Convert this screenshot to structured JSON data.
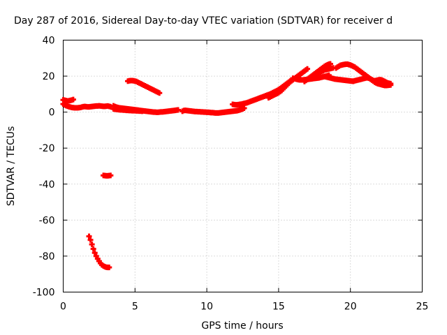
{
  "chart_data": {
    "type": "scatter",
    "title": "Day 287 of 2016, Sidereal Day-to-day VTEC variation (SDTVAR) for receiver d",
    "xlabel": "GPS time / hours",
    "ylabel": "SDTVAR / TECUs",
    "xlim": [
      0,
      25
    ],
    "ylim": [
      -100,
      40
    ],
    "xticks": [
      0,
      5,
      10,
      15,
      20,
      25
    ],
    "yticks": [
      -100,
      -80,
      -60,
      -40,
      -20,
      0,
      20,
      40
    ],
    "xtick_labels": [
      "0",
      "5",
      "10",
      "15",
      "20",
      "25"
    ],
    "ytick_labels": [
      "-100",
      "-80",
      "-60",
      "-40",
      "-20",
      "0",
      "20",
      "40"
    ],
    "grid": true,
    "color": "#ff0000",
    "series": [
      {
        "values_x": [
          0.0,
          0.1,
          0.2,
          0.3,
          0.4,
          0.5,
          0.6,
          0.7,
          0.8,
          0.9,
          1.0,
          1.1,
          1.2,
          1.3,
          1.4,
          1.5,
          1.6,
          1.7,
          1.8,
          1.9,
          2.0,
          2.1,
          2.2,
          2.3,
          2.4,
          2.5,
          2.6,
          2.7,
          2.8,
          2.9,
          3.0,
          3.1,
          3.2,
          3.3
        ],
        "values_y": [
          4.5,
          4.0,
          3.6,
          3.3,
          3.0,
          2.8,
          2.6,
          2.5,
          2.4,
          2.4,
          2.4,
          2.5,
          2.6,
          2.8,
          3.0,
          3.1,
          3.0,
          2.9,
          2.9,
          3.0,
          3.1,
          3.2,
          3.3,
          3.4,
          3.4,
          3.5,
          3.4,
          3.3,
          3.2,
          3.2,
          3.3,
          3.4,
          3.2,
          3.0
        ]
      },
      {
        "values_x": [
          0.0,
          0.1,
          0.2,
          0.3,
          0.4,
          0.5,
          0.6,
          0.7
        ],
        "values_y": [
          6.8,
          6.6,
          6.4,
          6.2,
          6.3,
          6.5,
          6.7,
          7.0
        ]
      },
      {
        "values_x": [
          3.5,
          3.6,
          3.7,
          3.8,
          3.9,
          4.0,
          4.1,
          4.2,
          4.3,
          4.4,
          4.5,
          4.6,
          4.7,
          4.8,
          4.9,
          5.0,
          5.1,
          5.2,
          5.3,
          5.4,
          5.5,
          5.6,
          5.7,
          5.8,
          5.9,
          6.0,
          6.1,
          6.2,
          6.3,
          6.4,
          6.5,
          6.6,
          6.7,
          6.8,
          6.9,
          7.0,
          7.1,
          7.2,
          7.3,
          7.4,
          7.5,
          7.6,
          7.7,
          7.8,
          7.9,
          8.0
        ],
        "values_y": [
          3.5,
          3.1,
          2.8,
          2.6,
          2.4,
          2.3,
          2.2,
          2.1,
          2.0,
          1.9,
          1.8,
          1.7,
          1.6,
          1.5,
          1.4,
          1.3,
          1.2,
          1.1,
          1.0,
          0.9,
          0.8,
          0.7,
          0.6,
          0.5,
          0.4,
          0.3,
          0.2,
          0.1,
          0.0,
          0.0,
          -0.1,
          -0.1,
          0.0,
          0.1,
          0.1,
          0.2,
          0.3,
          0.4,
          0.5,
          0.6,
          0.7,
          0.8,
          0.9,
          1.0,
          1.1,
          1.2
        ]
      },
      {
        "values_x": [
          3.5,
          3.6,
          3.7,
          3.8,
          3.9,
          4.0,
          4.1,
          4.2,
          4.3,
          4.4,
          4.5,
          4.6,
          4.7,
          4.8,
          4.9,
          5.0,
          5.1,
          5.2,
          5.3,
          5.4,
          5.5
        ],
        "values_y": [
          1.8,
          1.6,
          1.5,
          1.4,
          1.3,
          1.2,
          1.2,
          1.1,
          1.1,
          1.0,
          1.0,
          0.9,
          0.9,
          0.8,
          0.8,
          0.8,
          0.7,
          0.7,
          0.6,
          0.6,
          0.5
        ]
      },
      {
        "values_x": [
          4.5,
          4.6,
          4.7,
          4.8,
          4.9,
          5.0,
          5.1,
          5.2,
          5.3,
          5.4,
          5.5,
          5.6,
          5.7,
          5.8,
          5.9,
          6.0,
          6.1,
          6.2,
          6.3,
          6.4,
          6.5,
          6.6,
          6.7
        ],
        "values_y": [
          17.2,
          17.4,
          17.5,
          17.5,
          17.4,
          17.2,
          17.0,
          16.6,
          16.2,
          15.8,
          15.4,
          15.0,
          14.6,
          14.2,
          13.8,
          13.4,
          13.0,
          12.6,
          12.2,
          11.8,
          11.4,
          11.0,
          10.6
        ]
      },
      {
        "values_x": [
          8.3,
          8.4,
          8.5,
          8.6,
          8.7,
          8.8,
          8.9,
          9.0,
          9.1,
          9.2,
          9.3,
          9.4,
          9.5,
          9.6,
          9.7,
          9.8,
          9.9,
          10.0,
          10.1,
          10.2,
          10.3,
          10.4,
          10.5,
          10.6,
          10.7,
          10.8,
          10.9,
          11.0,
          11.1,
          11.2,
          11.3,
          11.4,
          11.5,
          11.6,
          11.7,
          11.8,
          11.9,
          12.0,
          12.1,
          12.2,
          12.3,
          12.4,
          12.5,
          12.6
        ],
        "values_y": [
          0.5,
          0.9,
          1.0,
          0.9,
          0.8,
          0.7,
          0.6,
          0.5,
          0.4,
          0.3,
          0.3,
          0.2,
          0.2,
          0.1,
          0.1,
          0.0,
          0.0,
          -0.1,
          -0.1,
          -0.2,
          -0.3,
          -0.3,
          -0.4,
          -0.5,
          -0.5,
          -0.5,
          -0.4,
          -0.3,
          -0.2,
          -0.1,
          0.0,
          0.1,
          0.2,
          0.3,
          0.4,
          0.5,
          0.6,
          0.7,
          0.8,
          1.0,
          1.2,
          1.5,
          1.8,
          2.2
        ]
      },
      {
        "values_x": [
          11.8,
          11.9,
          12.0,
          12.1,
          12.2,
          12.3,
          12.4,
          12.5,
          12.6,
          12.7,
          12.8,
          12.9,
          13.0,
          13.1,
          13.2,
          13.3,
          13.4,
          13.5,
          13.6,
          13.7,
          13.8,
          13.9,
          14.0,
          14.1,
          14.2,
          14.3,
          14.4,
          14.5,
          14.6,
          14.7,
          14.8,
          14.9,
          15.0,
          15.1,
          15.2,
          15.3,
          15.4,
          15.5,
          15.6,
          15.7,
          15.8,
          15.9,
          16.0
        ],
        "values_y": [
          4.3,
          4.2,
          4.1,
          4.1,
          4.2,
          4.3,
          4.4,
          4.6,
          4.8,
          5.0,
          5.2,
          5.5,
          5.8,
          6.1,
          6.4,
          6.7,
          7.0,
          7.3,
          7.6,
          7.9,
          8.2,
          8.5,
          8.8,
          9.1,
          9.4,
          9.7,
          10.0,
          10.4,
          10.8,
          11.2,
          11.6,
          12.0,
          12.5,
          13.0,
          13.6,
          14.2,
          14.8,
          15.4,
          16.0,
          16.6,
          17.2,
          17.8,
          18.4
        ]
      },
      {
        "values_x": [
          14.3,
          14.4,
          14.5,
          14.6,
          14.7,
          14.8,
          14.9,
          15.0,
          15.1,
          15.2,
          15.3,
          15.4,
          15.5,
          15.6,
          15.7,
          15.8,
          15.9,
          16.0,
          16.1,
          16.2,
          16.3,
          16.4,
          16.5,
          16.6,
          16.7,
          16.8,
          16.9,
          17.0
        ],
        "values_y": [
          8.0,
          8.4,
          8.8,
          9.2,
          9.6,
          10.0,
          10.4,
          10.8,
          11.4,
          12.0,
          12.8,
          13.6,
          14.4,
          15.2,
          16.0,
          16.8,
          17.4,
          18.0,
          18.6,
          19.2,
          19.8,
          20.4,
          21.0,
          21.6,
          22.2,
          22.8,
          23.4,
          24.0
        ]
      },
      {
        "values_x": [
          16.0,
          16.1,
          16.2,
          16.3,
          16.4,
          16.5,
          16.6,
          16.7,
          16.8,
          16.9,
          17.0,
          17.1,
          17.2,
          17.3,
          17.4,
          17.5,
          17.6,
          17.7,
          17.8,
          17.9,
          18.0,
          18.1,
          18.2,
          18.3,
          18.4,
          18.5
        ],
        "values_y": [
          18.8,
          18.6,
          18.4,
          18.2,
          18.0,
          17.9,
          17.9,
          17.9,
          18.0,
          18.1,
          18.2,
          18.3,
          18.4,
          18.5,
          18.6,
          18.7,
          18.8,
          18.9,
          19.0,
          19.2,
          19.4,
          19.6,
          19.8,
          20.0,
          20.2,
          20.5
        ]
      },
      {
        "values_x": [
          16.8,
          16.9,
          17.0,
          17.1,
          17.2,
          17.3,
          17.4,
          17.5,
          17.6,
          17.7,
          17.8,
          17.9,
          18.0,
          18.1,
          18.2,
          18.3,
          18.4,
          18.5,
          18.6
        ],
        "values_y": [
          17.0,
          17.6,
          18.2,
          18.8,
          19.4,
          20.0,
          20.6,
          21.2,
          21.8,
          22.4,
          23.0,
          23.6,
          24.2,
          24.8,
          25.4,
          25.9,
          26.3,
          26.6,
          26.8
        ]
      },
      {
        "values_x": [
          17.6,
          17.7,
          17.8,
          17.9,
          18.0,
          18.1,
          18.2,
          18.3,
          18.4,
          18.5,
          18.6,
          18.7,
          18.8
        ],
        "values_y": [
          21.0,
          21.4,
          21.8,
          22.2,
          22.6,
          23.0,
          23.4,
          23.6,
          23.8,
          24.0,
          24.2,
          24.4,
          24.6
        ]
      },
      {
        "values_x": [
          18.2,
          18.3,
          18.4,
          18.5,
          18.6,
          18.7,
          18.8,
          18.9,
          19.0,
          19.1,
          19.2,
          19.3,
          19.4,
          19.5,
          19.6,
          19.7,
          19.8,
          19.9,
          20.0,
          20.1,
          20.2
        ],
        "values_y": [
          19.8,
          19.6,
          19.4,
          19.2,
          19.0,
          18.8,
          18.6,
          18.4,
          18.3,
          18.2,
          18.1,
          18.0,
          17.9,
          17.8,
          17.7,
          17.6,
          17.5,
          17.4,
          17.3,
          17.2,
          17.1
        ]
      },
      {
        "values_x": [
          19.0,
          19.1,
          19.2,
          19.3,
          19.4,
          19.5,
          19.6,
          19.7,
          19.8,
          19.9,
          20.0,
          20.1,
          20.2,
          20.3,
          20.4,
          20.5,
          20.6,
          20.7,
          20.8,
          20.9,
          21.0,
          21.1,
          21.2,
          21.3,
          21.4,
          21.5,
          21.6,
          21.7,
          21.8,
          21.9,
          22.0,
          22.1,
          22.2,
          22.3,
          22.4,
          22.5,
          22.6,
          22.7,
          22.8
        ],
        "values_y": [
          24.5,
          25.0,
          25.5,
          26.0,
          26.2,
          26.4,
          26.5,
          26.6,
          26.6,
          26.4,
          26.2,
          25.8,
          25.4,
          25.0,
          24.4,
          23.8,
          23.2,
          22.6,
          22.0,
          21.4,
          20.8,
          20.2,
          19.6,
          19.0,
          18.4,
          17.8,
          17.2,
          16.6,
          16.2,
          15.8,
          15.6,
          15.4,
          15.2,
          15.0,
          14.8,
          14.8,
          14.9,
          15.0,
          15.1
        ]
      },
      {
        "values_x": [
          20.2,
          20.3,
          20.4,
          20.5,
          20.6,
          20.7,
          20.8,
          20.9,
          21.0,
          21.1,
          21.2,
          21.3,
          21.4,
          21.5,
          21.6,
          21.7,
          21.8,
          21.9,
          22.0,
          22.1,
          22.2,
          22.3,
          22.4,
          22.5,
          22.6,
          22.7,
          22.8
        ],
        "values_y": [
          17.2,
          17.4,
          17.6,
          17.8,
          18.0,
          18.2,
          18.4,
          18.6,
          18.8,
          19.0,
          19.0,
          18.8,
          18.4,
          18.0,
          17.6,
          17.4,
          17.6,
          17.8,
          18.0,
          18.0,
          17.8,
          17.4,
          17.0,
          16.6,
          16.2,
          16.0,
          15.8
        ]
      },
      {
        "values_x": [
          2.8,
          2.9,
          3.0,
          3.1,
          3.2,
          3.3
        ],
        "values_y": [
          -35.2,
          -35.3,
          -35.4,
          -35.4,
          -35.3,
          -35.2
        ]
      },
      {
        "values_x": [
          1.8,
          1.9,
          2.0,
          2.1,
          2.2,
          2.3,
          2.4,
          2.5,
          2.6,
          2.7,
          2.8,
          2.9,
          3.0,
          3.1,
          3.2
        ],
        "values_y": [
          -69.0,
          -71.0,
          -73.5,
          -76.0,
          -78.2,
          -80.0,
          -81.5,
          -82.8,
          -84.0,
          -84.9,
          -85.5,
          -85.9,
          -86.2,
          -86.3,
          -86.3
        ]
      }
    ]
  }
}
